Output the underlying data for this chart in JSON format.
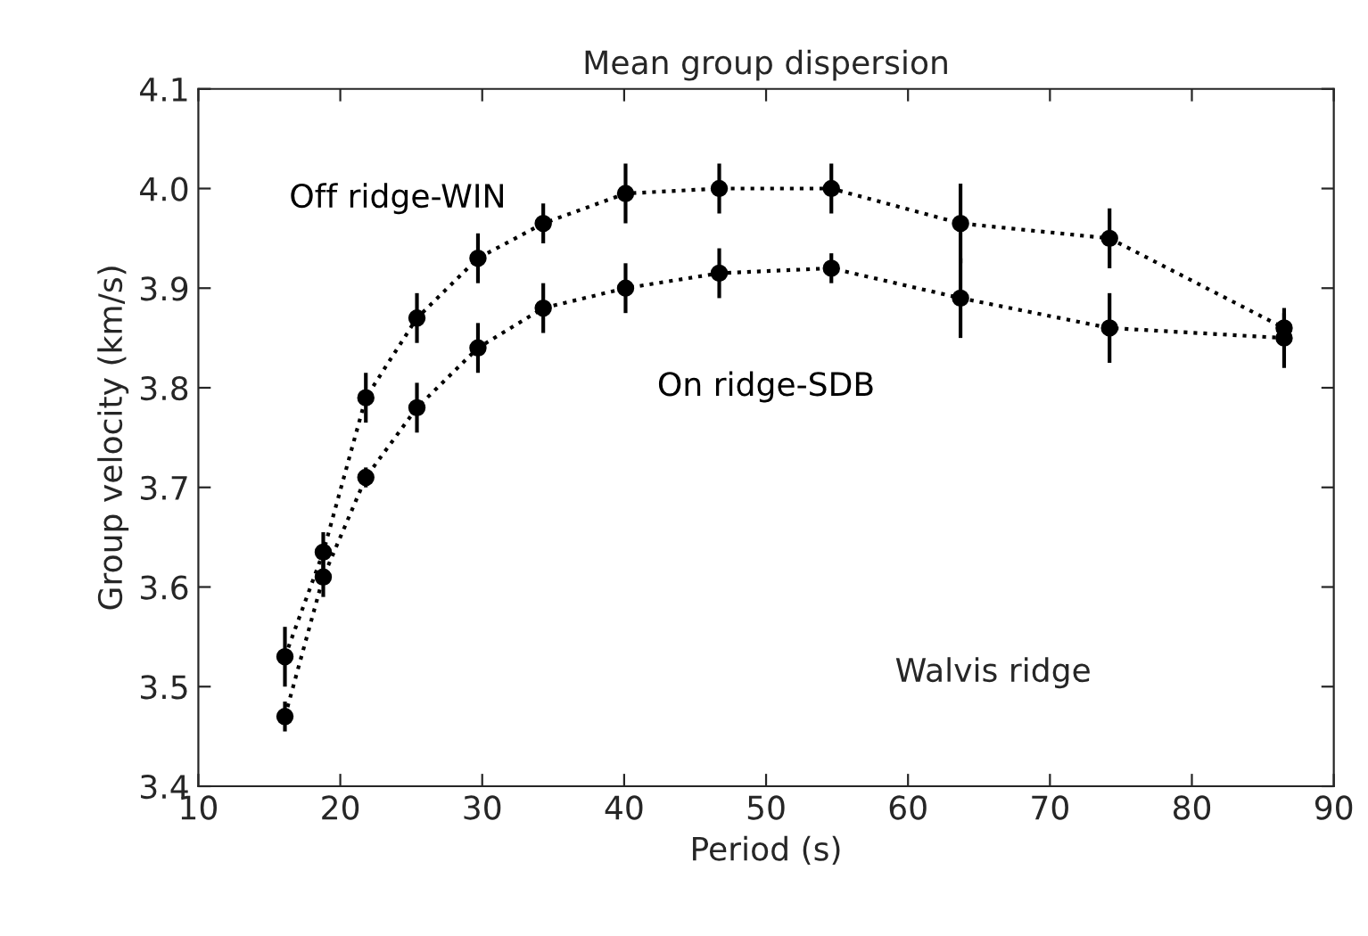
{
  "chart_data": {
    "type": "line",
    "title": "Mean group dispersion",
    "xlabel": "Period (s)",
    "ylabel": "Group velocity (km/s)",
    "x": [
      16.1,
      18.8,
      21.8,
      25.4,
      29.7,
      34.3,
      40.1,
      46.7,
      54.6,
      63.7,
      74.2,
      86.5
    ],
    "series": [
      {
        "name": "Off ridge-WIN",
        "color": "#000000",
        "values": [
          3.53,
          3.635,
          3.79,
          3.87,
          3.93,
          3.965,
          3.995,
          4.0,
          4.0,
          3.965,
          3.95,
          3.86
        ],
        "errors": [
          0.03,
          0.02,
          0.025,
          0.025,
          0.025,
          0.02,
          0.03,
          0.025,
          0.025,
          0.04,
          0.03,
          0.015
        ]
      },
      {
        "name": "On ridge-SDB",
        "color": "#000000",
        "values": [
          3.47,
          3.61,
          3.71,
          3.78,
          3.84,
          3.88,
          3.9,
          3.915,
          3.92,
          3.89,
          3.86,
          3.85
        ],
        "errors": [
          0.015,
          0.02,
          0.01,
          0.025,
          0.025,
          0.025,
          0.025,
          0.025,
          0.015,
          0.04,
          0.035,
          0.03
        ]
      }
    ],
    "annotations": [
      "Walvis ridge"
    ],
    "xlim": [
      10,
      90
    ],
    "xticks": [
      10,
      20,
      30,
      40,
      50,
      60,
      70,
      80,
      90
    ],
    "ylim": [
      3.4,
      4.1
    ],
    "yticks": [
      {
        "value": 3.4,
        "label": "3.4"
      },
      {
        "value": 3.5,
        "label": "3.5"
      },
      {
        "value": 3.6,
        "label": "3.6"
      },
      {
        "value": 3.7,
        "label": "3.7"
      },
      {
        "value": 3.8,
        "label": "3.8"
      },
      {
        "value": 3.9,
        "label": "3.9"
      },
      {
        "value": 4.0,
        "label": "4.0"
      },
      {
        "value": 4.1,
        "label": "4.1"
      }
    ],
    "marker": "circle",
    "line_style": "dotted",
    "grid": false,
    "legend": false
  }
}
